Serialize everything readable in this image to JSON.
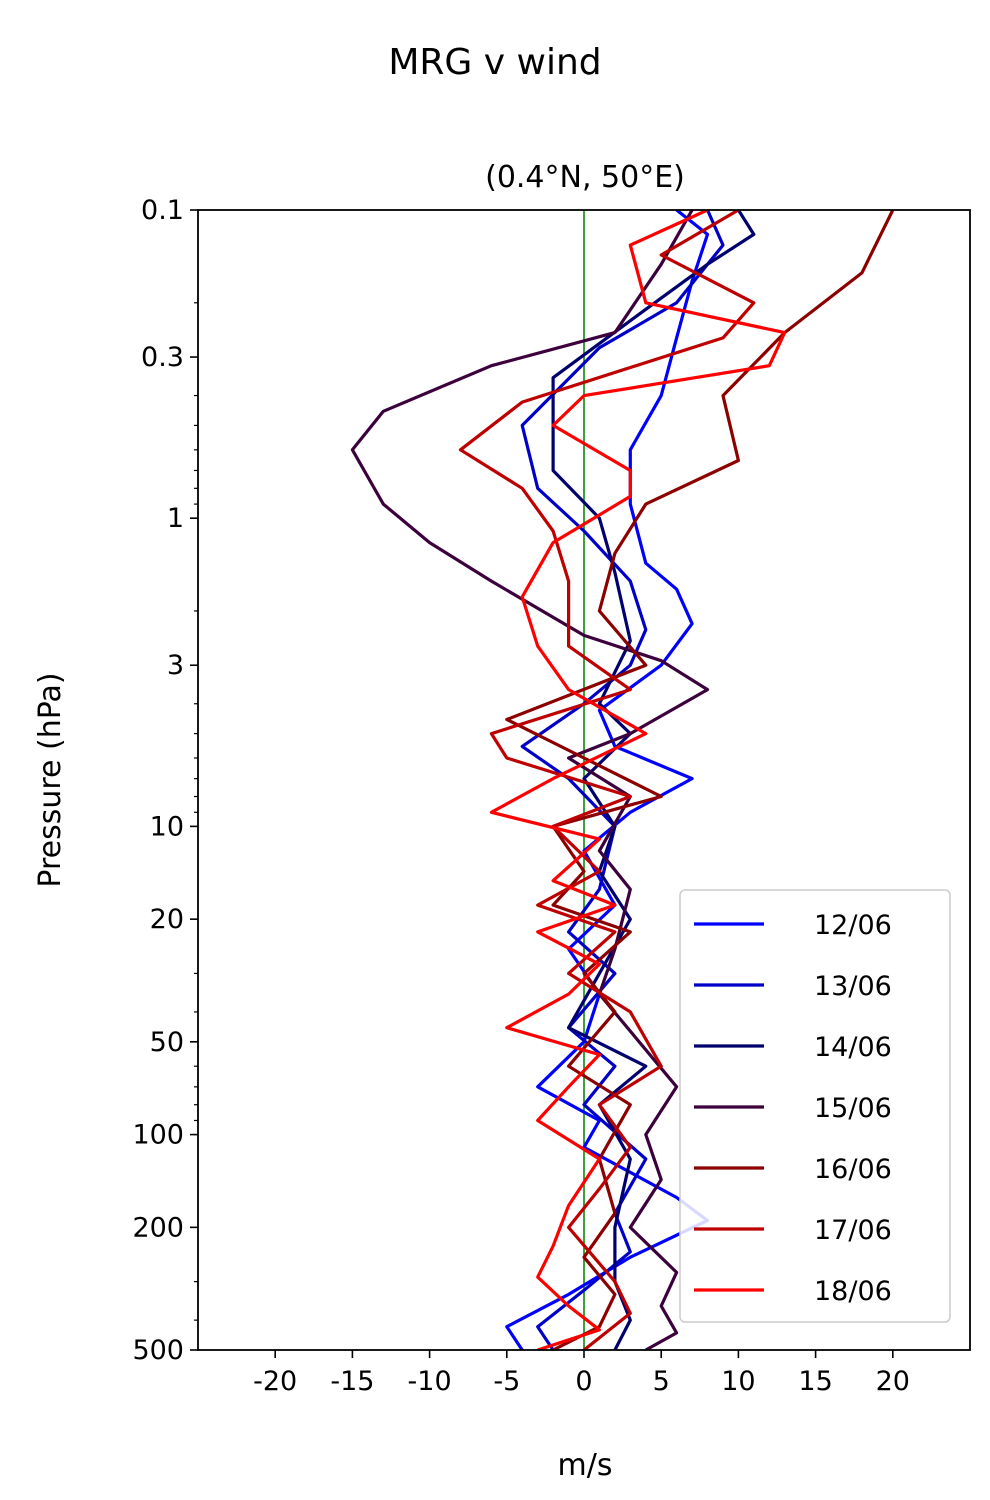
{
  "figure": {
    "suptitle": "MRG v wind"
  },
  "chart_data": {
    "type": "line",
    "title": "(0.4°N, 50°E)",
    "xlabel": "m/s",
    "ylabel": "Pressure (hPa)",
    "xlim": [
      -25,
      25
    ],
    "ylim": [
      500,
      0.1
    ],
    "y_scale": "log",
    "y_inverted": true,
    "xticks": [
      -20,
      -15,
      -10,
      -5,
      0,
      5,
      10,
      15,
      20
    ],
    "xtick_labels": [
      "-20",
      "-15",
      "-10",
      "-5",
      "0",
      "5",
      "10",
      "15",
      "20"
    ],
    "yticks": [
      0.1,
      0.3,
      1,
      3,
      10,
      20,
      50,
      100,
      200,
      500
    ],
    "ytick_labels": [
      "0.1",
      "0.3",
      "1",
      "3",
      "10",
      "20",
      "50",
      "100",
      "200",
      "500"
    ],
    "zero_line": {
      "x": 0,
      "color": "#008000"
    },
    "grid": false,
    "legend_position": "lower-right",
    "series": [
      {
        "name": "12/06",
        "color": "#0000ff",
        "points": [
          [
            6,
            0.1
          ],
          [
            8,
            0.12
          ],
          [
            7,
            0.17
          ],
          [
            6,
            0.26
          ],
          [
            5,
            0.4
          ],
          [
            3,
            0.6
          ],
          [
            3,
            0.9
          ],
          [
            4,
            1.4
          ],
          [
            6,
            1.7
          ],
          [
            7,
            2.2
          ],
          [
            5,
            3
          ],
          [
            1,
            4.2
          ],
          [
            2,
            5.5
          ],
          [
            7,
            7
          ],
          [
            3,
            9
          ],
          [
            0,
            12
          ],
          [
            2,
            18
          ],
          [
            -1,
            25
          ],
          [
            1,
            35
          ],
          [
            0,
            50
          ],
          [
            -3,
            70
          ],
          [
            1,
            90
          ],
          [
            0,
            110
          ],
          [
            6,
            160
          ],
          [
            8,
            190
          ],
          [
            3,
            250
          ],
          [
            -1,
            330
          ],
          [
            -5,
            420
          ],
          [
            -4,
            500
          ]
        ]
      },
      {
        "name": "13/06",
        "color": "#0000c8",
        "points": [
          [
            8,
            0.1
          ],
          [
            9,
            0.13
          ],
          [
            6,
            0.2
          ],
          [
            1,
            0.28
          ],
          [
            -4,
            0.5
          ],
          [
            -3,
            0.8
          ],
          [
            0,
            1.1
          ],
          [
            3,
            1.6
          ],
          [
            4,
            2.3
          ],
          [
            3,
            3
          ],
          [
            0,
            4
          ],
          [
            -4,
            5.5
          ],
          [
            -1,
            7
          ],
          [
            2,
            10
          ],
          [
            1,
            16
          ],
          [
            -1,
            22
          ],
          [
            2,
            30
          ],
          [
            -1,
            45
          ],
          [
            2,
            60
          ],
          [
            0,
            80
          ],
          [
            4,
            120
          ],
          [
            2,
            180
          ],
          [
            3,
            240
          ],
          [
            0,
            320
          ],
          [
            -3,
            420
          ],
          [
            -2,
            500
          ]
        ]
      },
      {
        "name": "14/06",
        "color": "#00006e",
        "points": [
          [
            10,
            0.1
          ],
          [
            11,
            0.12
          ],
          [
            8,
            0.15
          ],
          [
            4,
            0.21
          ],
          [
            -2,
            0.35
          ],
          [
            -2,
            0.7
          ],
          [
            1,
            1
          ],
          [
            2,
            1.5
          ],
          [
            3,
            2.5
          ],
          [
            1,
            4
          ],
          [
            3,
            5
          ],
          [
            0,
            7
          ],
          [
            2,
            10
          ],
          [
            1,
            14
          ],
          [
            3,
            20
          ],
          [
            1,
            30
          ],
          [
            -1,
            45
          ],
          [
            4,
            60
          ],
          [
            1,
            80
          ],
          [
            3,
            120
          ],
          [
            2,
            200
          ],
          [
            2,
            300
          ],
          [
            3,
            400
          ],
          [
            2,
            500
          ]
        ]
      },
      {
        "name": "15/06",
        "color": "#3c003c",
        "points": [
          [
            7,
            0.1
          ],
          [
            5,
            0.15
          ],
          [
            2,
            0.25
          ],
          [
            -6,
            0.32
          ],
          [
            -13,
            0.45
          ],
          [
            -15,
            0.6
          ],
          [
            -13,
            0.9
          ],
          [
            -10,
            1.2
          ],
          [
            -6,
            1.6
          ],
          [
            0,
            2.4
          ],
          [
            5,
            2.9
          ],
          [
            8,
            3.6
          ],
          [
            3,
            5
          ],
          [
            -1,
            6
          ],
          [
            3,
            8
          ],
          [
            1,
            12
          ],
          [
            3,
            16
          ],
          [
            2,
            25
          ],
          [
            1,
            35
          ],
          [
            6,
            70
          ],
          [
            4,
            100
          ],
          [
            5,
            140
          ],
          [
            3,
            200
          ],
          [
            6,
            280
          ],
          [
            5,
            360
          ],
          [
            6,
            440
          ],
          [
            4,
            500
          ]
        ]
      },
      {
        "name": "16/06",
        "color": "#8c0000",
        "points": [
          [
            20,
            0.1
          ],
          [
            18,
            0.16
          ],
          [
            13,
            0.25
          ],
          [
            9,
            0.4
          ],
          [
            10,
            0.65
          ],
          [
            4,
            0.9
          ],
          [
            2,
            1.3
          ],
          [
            1,
            2
          ],
          [
            4,
            3
          ],
          [
            -5,
            4.5
          ],
          [
            0,
            6
          ],
          [
            5,
            8
          ],
          [
            -2,
            10
          ],
          [
            0,
            14
          ],
          [
            -2,
            18
          ],
          [
            3,
            22
          ],
          [
            0,
            30
          ],
          [
            2,
            40
          ],
          [
            -1,
            60
          ],
          [
            3,
            80
          ],
          [
            1,
            120
          ],
          [
            2,
            180
          ],
          [
            0,
            250
          ],
          [
            2,
            330
          ],
          [
            1,
            420
          ],
          [
            -2,
            500
          ]
        ]
      },
      {
        "name": "17/06",
        "color": "#be0000",
        "points": [
          [
            10,
            0.1
          ],
          [
            5,
            0.14
          ],
          [
            11,
            0.2
          ],
          [
            9,
            0.26
          ],
          [
            -4,
            0.42
          ],
          [
            -8,
            0.6
          ],
          [
            -4,
            0.8
          ],
          [
            -2,
            1.1
          ],
          [
            -1,
            1.6
          ],
          [
            -1,
            2.6
          ],
          [
            3,
            3.6
          ],
          [
            -6,
            5
          ],
          [
            -5,
            6
          ],
          [
            3,
            8
          ],
          [
            -2,
            10
          ],
          [
            1,
            14
          ],
          [
            -3,
            18
          ],
          [
            2,
            22
          ],
          [
            -1,
            30
          ],
          [
            3,
            40
          ],
          [
            5,
            60
          ],
          [
            1,
            80
          ],
          [
            3,
            110
          ],
          [
            1,
            150
          ],
          [
            -1,
            200
          ],
          [
            2,
            300
          ],
          [
            3,
            380
          ],
          [
            0,
            500
          ]
        ]
      },
      {
        "name": "18/06",
        "color": "#ff0000",
        "points": [
          [
            8,
            0.1
          ],
          [
            3,
            0.13
          ],
          [
            4,
            0.2
          ],
          [
            13,
            0.25
          ],
          [
            12,
            0.32
          ],
          [
            0,
            0.4
          ],
          [
            -2,
            0.5
          ],
          [
            3,
            0.7
          ],
          [
            3,
            0.85
          ],
          [
            -2,
            1.2
          ],
          [
            -4,
            1.8
          ],
          [
            -3,
            2.6
          ],
          [
            -1,
            3.6
          ],
          [
            4,
            5
          ],
          [
            -2,
            7
          ],
          [
            -6,
            9
          ],
          [
            1,
            11
          ],
          [
            -2,
            15
          ],
          [
            2,
            18
          ],
          [
            -3,
            22
          ],
          [
            1,
            28
          ],
          [
            -1,
            35
          ],
          [
            -5,
            45
          ],
          [
            1,
            55
          ],
          [
            -1,
            70
          ],
          [
            -3,
            90
          ],
          [
            1,
            120
          ],
          [
            -1,
            170
          ],
          [
            -2,
            230
          ],
          [
            -3,
            290
          ],
          [
            -1,
            360
          ],
          [
            1,
            430
          ],
          [
            -3,
            500
          ]
        ]
      }
    ]
  }
}
